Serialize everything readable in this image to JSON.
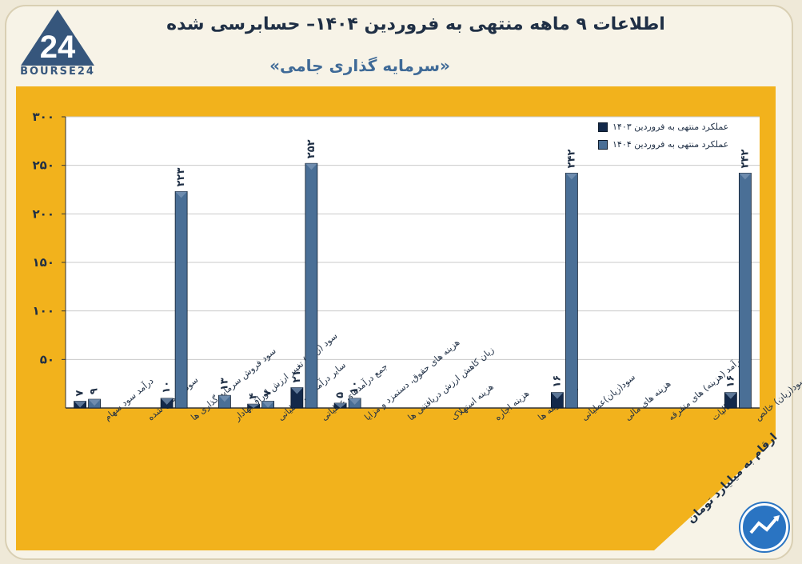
{
  "header": {
    "title": "اطلاعات ۹ ماهه منتهی به فروردین ۱۴۰۴– حسابرسی شده",
    "subtitle": "«سرمایه گذاری جامی»",
    "logo_text": "BOURSE24",
    "logo_digits": "24"
  },
  "ribbon": {
    "text": "ارقام به میلیارد تومان"
  },
  "colors": {
    "panel": "#f2b21c",
    "series_1403": "#13294a",
    "series_1404": "#4a6f96",
    "brand": "#36567c"
  },
  "chart_data": {
    "type": "bar",
    "ylim": [
      0,
      300
    ],
    "yticks": [
      "۳۰۰",
      "۲۵۰",
      "۲۰۰",
      "۱۵۰",
      "۱۰۰",
      "۵۰"
    ],
    "ytick_values": [
      300,
      250,
      200,
      150,
      100,
      50
    ],
    "categories": [
      "درآمد سود سهام",
      "سود تضمین شده",
      "سود فروش سرمایه گذاری ها",
      "سود (زیان) تغییر ارزش اوراق بهادار",
      "سایر درآمدهای عملیاتی",
      "جمع درآمدهای عملیاتی",
      "هزینه های حقوق، دستمزد و مزایا",
      "زیان کاهش ارزش دریافتنی ها",
      "هزینه استهلاک",
      "هزینه اجاره",
      "سایر هزینه ها",
      "سود(زیان)عملیاتی",
      "هزینه های مالی",
      "درآمد (هزینه) های متفرقه",
      "مالیات",
      "سود(زیان) خالص"
    ],
    "series": [
      {
        "name": "عملکرد منتهی به فروردین ۱۴۰۳",
        "values": [
          7,
          null,
          10,
          null,
          4,
          21,
          5,
          null,
          null,
          null,
          null,
          16,
          null,
          null,
          null,
          16
        ],
        "labels": [
          "۷",
          "",
          "۱۰",
          "",
          "۴",
          "۲۱",
          "۵",
          "",
          "",
          "",
          "",
          "۱۶",
          "",
          "",
          "",
          "۱۶"
        ]
      },
      {
        "name": "عملکرد منتهی به فروردین ۱۴۰۴",
        "values": [
          9,
          null,
          223,
          13,
          7,
          252,
          10,
          null,
          null,
          null,
          null,
          242,
          null,
          null,
          null,
          242
        ],
        "labels": [
          "۹",
          "",
          "۲۲۳",
          "۱۳",
          "۷",
          "۲۵۲",
          "۱۰",
          "",
          "",
          "",
          "",
          "۲۴۲",
          "",
          "",
          "",
          "۲۴۲"
        ]
      }
    ],
    "legend_position": "top-right"
  }
}
